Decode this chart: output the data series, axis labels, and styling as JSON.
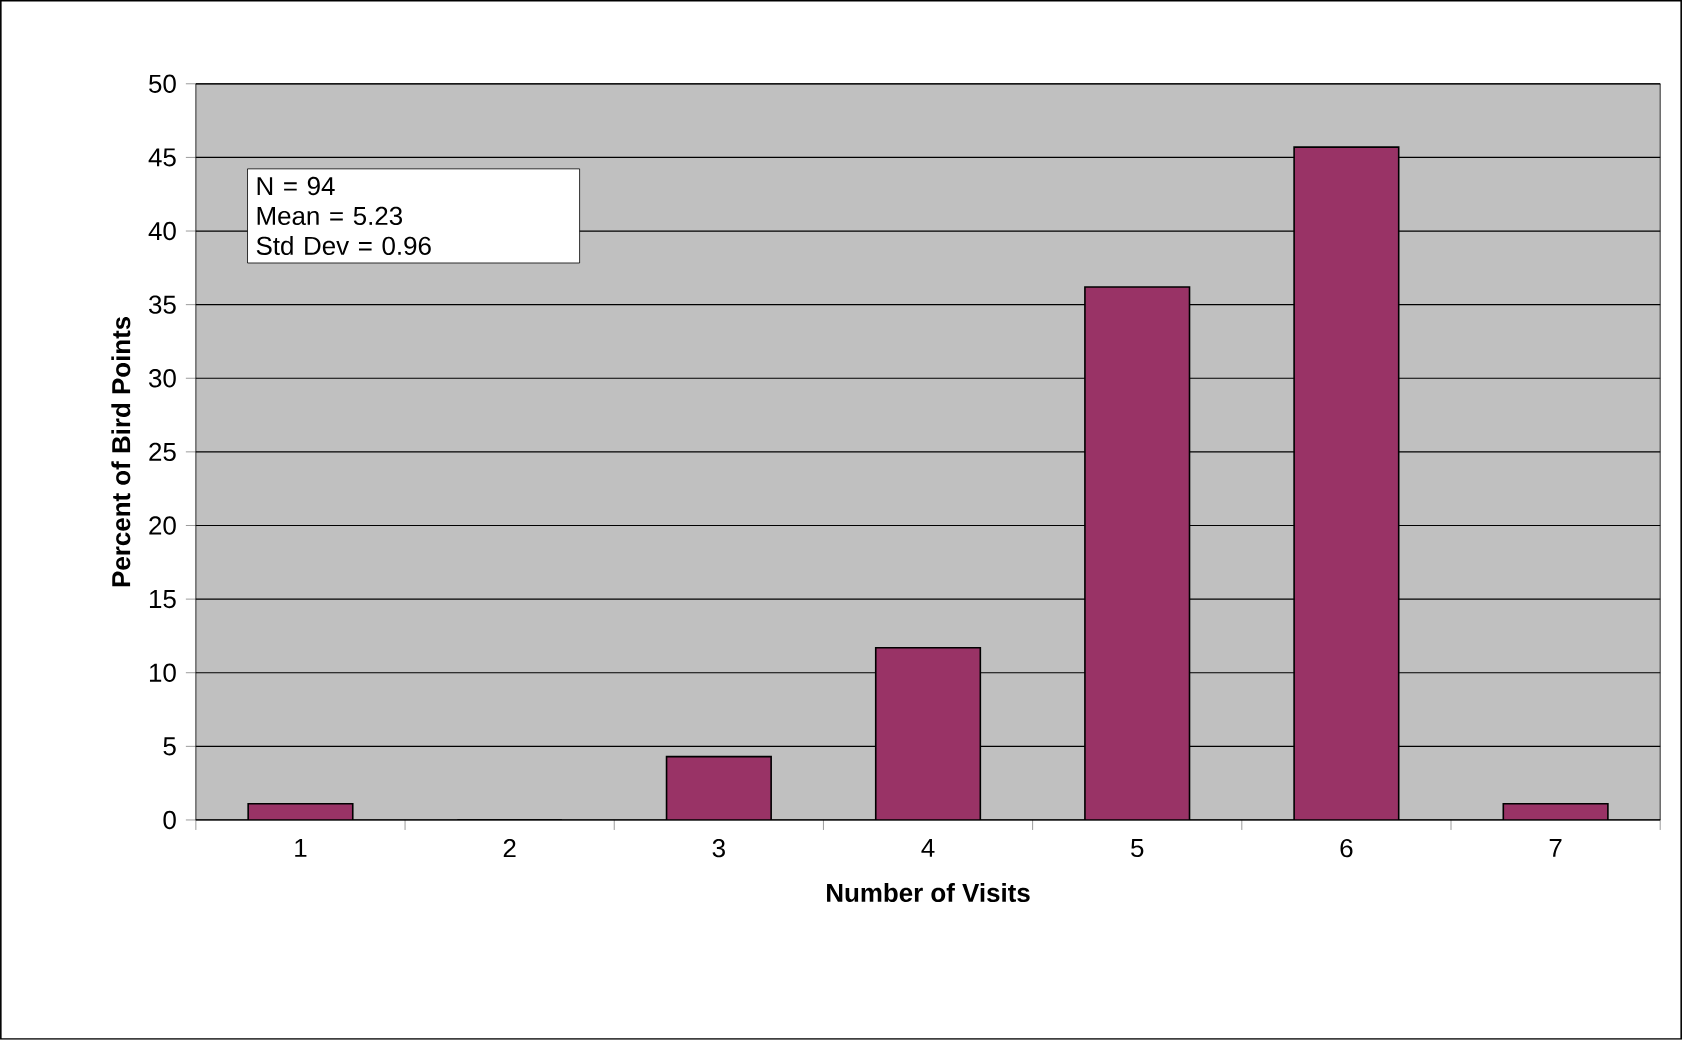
{
  "chart_data": {
    "type": "bar",
    "xlabel": "Number of Visits",
    "ylabel": "Percent of Bird Points",
    "categories": [
      "1",
      "2",
      "3",
      "4",
      "5",
      "6",
      "7"
    ],
    "values": [
      1.1,
      0,
      4.3,
      11.7,
      36.2,
      45.7,
      1.1
    ],
    "color": "#993366",
    "ylim": [
      0,
      50
    ],
    "yticks": [
      0,
      5,
      10,
      15,
      20,
      25,
      30,
      35,
      40,
      45,
      50
    ],
    "grid": "y",
    "annotations": [
      "N = 94",
      "Mean = 5.23",
      "Std Dev = 0.96"
    ]
  }
}
